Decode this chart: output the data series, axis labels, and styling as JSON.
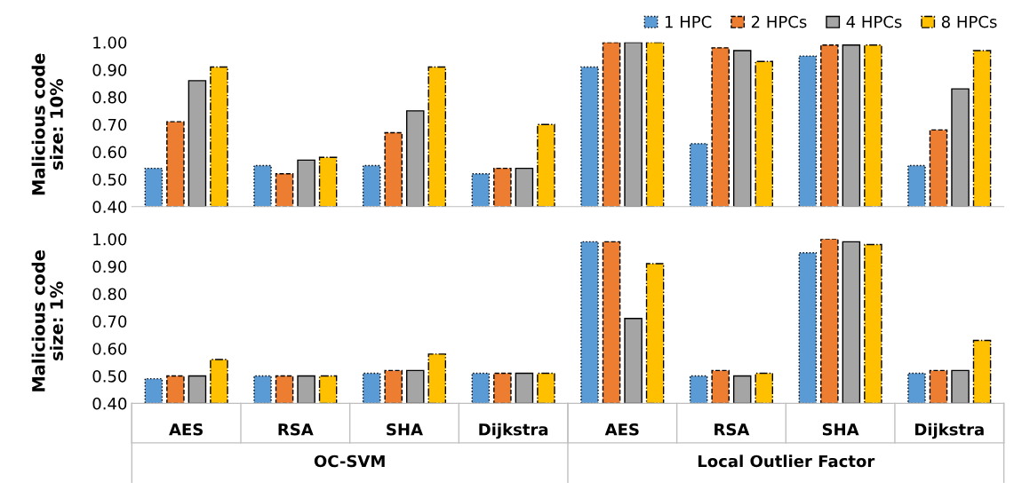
{
  "chart_data": [
    {
      "type": "bar",
      "ylabel": "Malicious code size: 10%",
      "ylim": [
        0.4,
        1.0
      ],
      "yticks": [
        {
          "value": 0.4,
          "label": "0.40"
        },
        {
          "value": 0.5,
          "label": "0.50"
        },
        {
          "value": 0.6,
          "label": "0.60"
        },
        {
          "value": 0.7,
          "label": "0.70"
        },
        {
          "value": 0.8,
          "label": "0.80"
        },
        {
          "value": 0.9,
          "label": "0.90"
        },
        {
          "value": 1.0,
          "label": "1.00"
        }
      ],
      "grid": false,
      "legend": "top right",
      "series": [
        {
          "name": "1 HPC",
          "color": "#5b9bd5",
          "line_style": "dotted",
          "values": [
            0.54,
            0.55,
            0.55,
            0.52,
            0.91,
            0.63,
            0.95,
            0.55
          ]
        },
        {
          "name": "2 HPCs",
          "color": "#ed7d31",
          "line_style": "dashed",
          "values": [
            0.71,
            0.52,
            0.67,
            0.54,
            1.0,
            0.98,
            0.99,
            0.68
          ]
        },
        {
          "name": "4 HPCs",
          "color": "#a5a5a5",
          "line_style": "solid",
          "values": [
            0.86,
            0.57,
            0.75,
            0.54,
            1.0,
            0.97,
            0.99,
            0.83
          ]
        },
        {
          "name": "8 HPCs",
          "color": "#ffc000",
          "line_style": "dashdot",
          "values": [
            0.91,
            0.58,
            0.91,
            0.7,
            1.0,
            0.93,
            0.99,
            0.97
          ]
        }
      ]
    },
    {
      "type": "bar",
      "ylabel": "Malicious code size: 1%",
      "categories": [
        "AES",
        "RSA",
        "SHA",
        "Dijkstra",
        "AES",
        "RSA",
        "SHA",
        "Dijkstra"
      ],
      "ylim": [
        0.4,
        1.0
      ],
      "yticks": [
        {
          "value": 0.4,
          "label": "0.40"
        },
        {
          "value": 0.5,
          "label": "0.50"
        },
        {
          "value": 0.6,
          "label": "0.60"
        },
        {
          "value": 0.7,
          "label": "0.70"
        },
        {
          "value": 0.8,
          "label": "0.80"
        },
        {
          "value": 0.9,
          "label": "0.90"
        },
        {
          "value": 1.0,
          "label": "1.00"
        }
      ],
      "grid": false,
      "legend": false,
      "annotations": [
        "OC-SVM",
        "Local Outlier Factor"
      ],
      "series": [
        {
          "color": "#5b9bd5",
          "line_style": "dotted",
          "values": [
            0.49,
            0.5,
            0.51,
            0.51,
            0.99,
            0.5,
            0.95,
            0.51
          ]
        },
        {
          "color": "#ed7d31",
          "line_style": "dashed",
          "values": [
            0.5,
            0.5,
            0.52,
            0.51,
            0.99,
            0.52,
            1.0,
            0.52
          ]
        },
        {
          "color": "#a5a5a5",
          "line_style": "solid",
          "values": [
            0.5,
            0.5,
            0.52,
            0.51,
            0.71,
            0.5,
            0.99,
            0.52
          ]
        },
        {
          "color": "#ffc000",
          "line_style": "dashdot",
          "values": [
            0.56,
            0.5,
            0.58,
            0.51,
            0.91,
            0.51,
            0.98,
            0.63
          ]
        }
      ]
    }
  ]
}
